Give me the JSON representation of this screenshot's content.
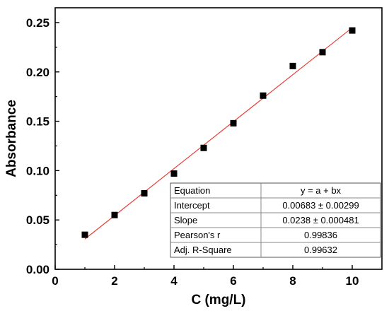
{
  "chart_data": {
    "type": "scatter",
    "xlabel": "C (mg/L)",
    "ylabel": "Absorbance",
    "xlim": [
      0,
      11
    ],
    "ylim": [
      0,
      0.265
    ],
    "x_ticks": [
      0,
      2,
      4,
      6,
      8,
      10
    ],
    "x_tick_labels": [
      "0",
      "2",
      "4",
      "6",
      "8",
      "10"
    ],
    "y_ticks": [
      0,
      0.05,
      0.1,
      0.15,
      0.2,
      0.25
    ],
    "y_tick_labels": [
      "0.00",
      "0.05",
      "0.10",
      "0.15",
      "0.20",
      "0.25"
    ],
    "grid": false,
    "series": [
      {
        "x": [
          1,
          2,
          3,
          4,
          5,
          6,
          7,
          8,
          9,
          10
        ],
        "y": [
          0.035,
          0.055,
          0.077,
          0.097,
          0.123,
          0.148,
          0.176,
          0.206,
          0.22,
          0.242
        ],
        "color": "#000000",
        "marker": "square"
      }
    ],
    "fit_line": {
      "intercept": 0.00683,
      "slope": 0.0238,
      "x_range": [
        1,
        10
      ],
      "color": "#e8403a"
    },
    "fit_table": {
      "rows": [
        [
          "Equation",
          "y = a + bx"
        ],
        [
          "Intercept",
          "0.00683 ± 0.00299"
        ],
        [
          "Slope",
          "0.0238 ± 0.000481"
        ],
        [
          "Pearson's r",
          "0.99836"
        ],
        [
          "Adj. R-Square",
          "0.99632"
        ]
      ]
    }
  }
}
